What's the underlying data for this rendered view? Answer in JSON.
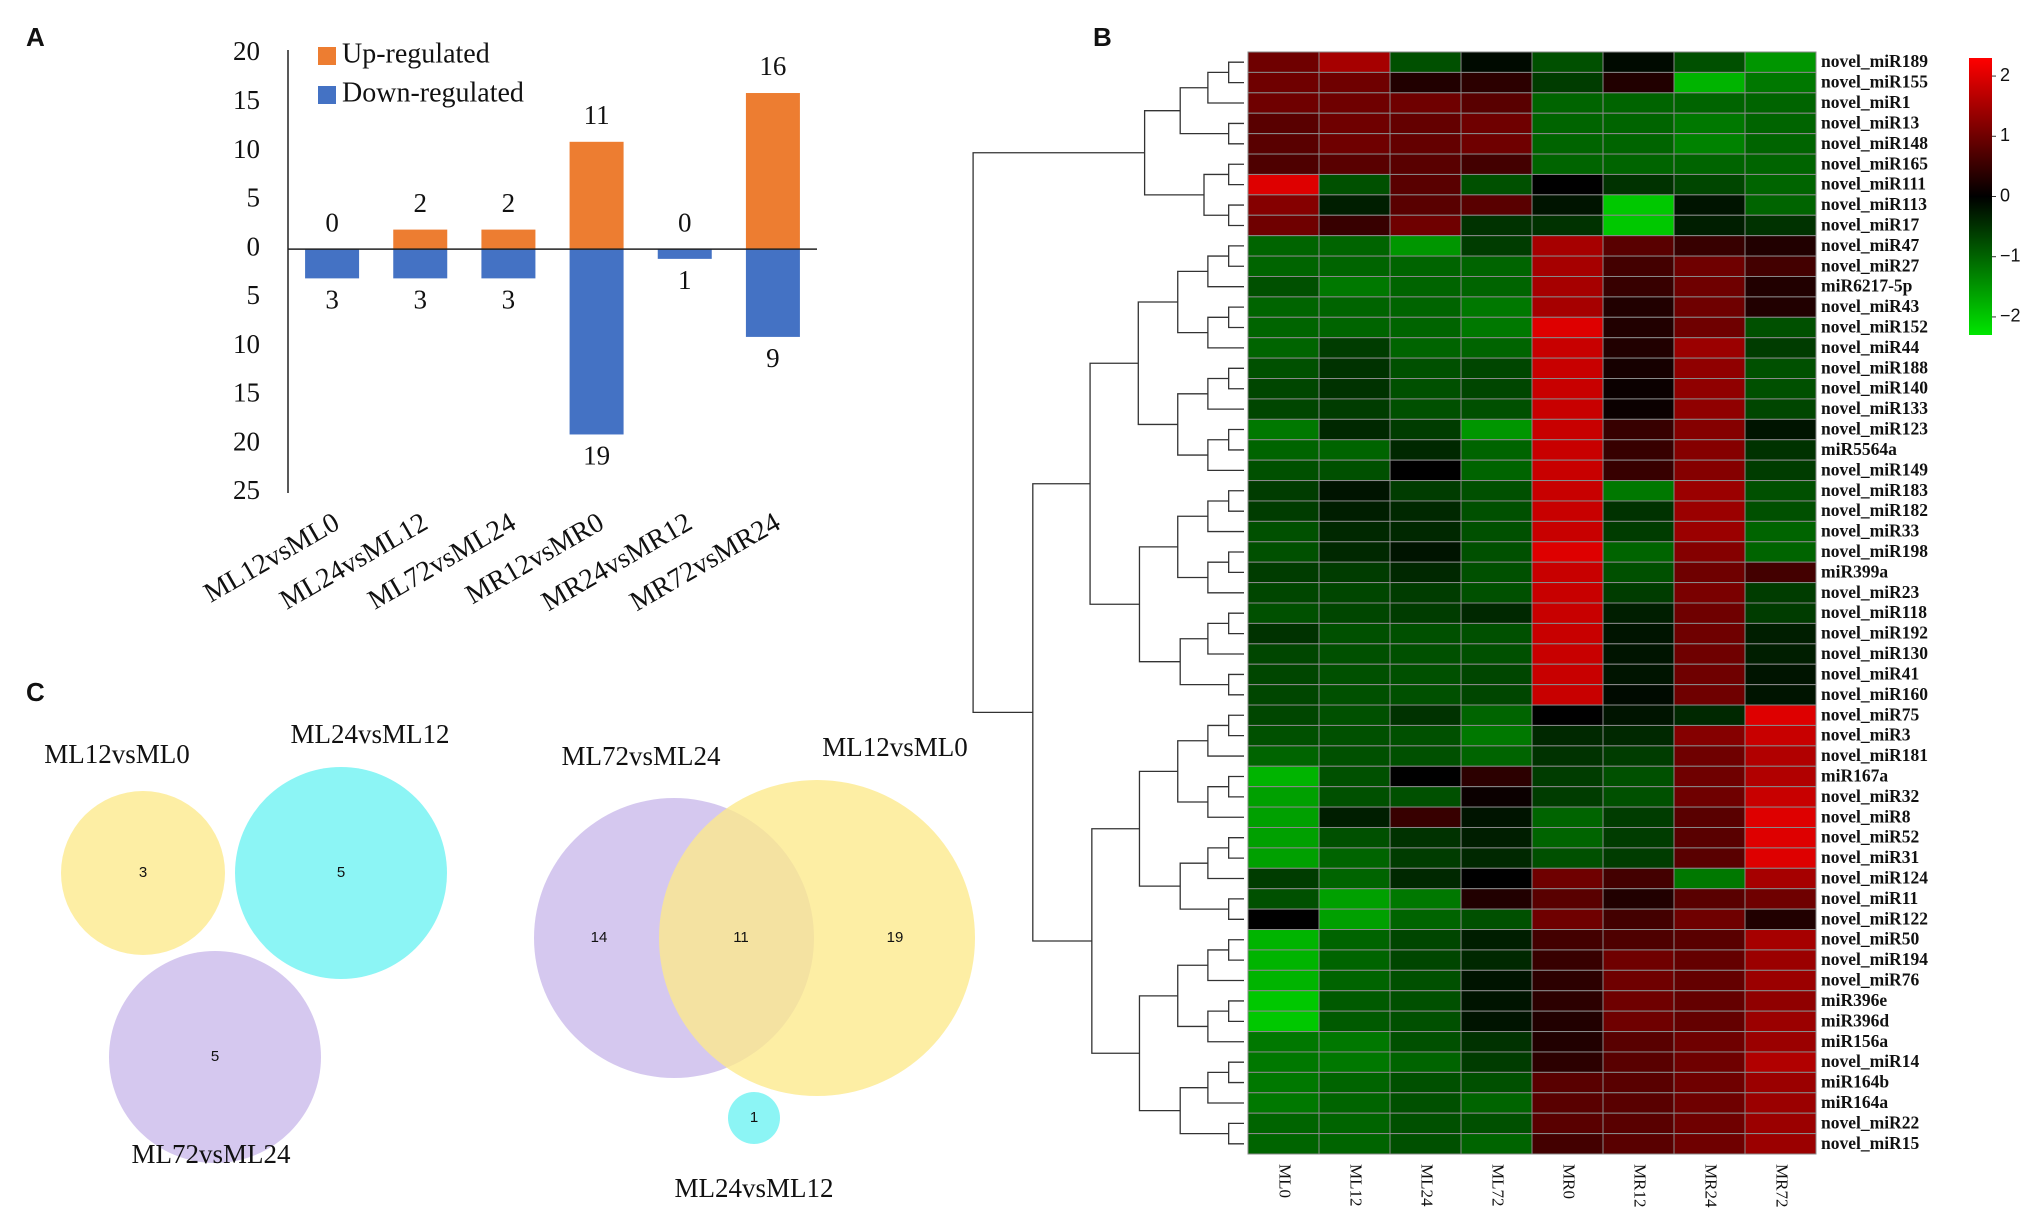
{
  "chart_data": [
    {
      "type": "bar",
      "panel_label": "A",
      "categories": [
        "ML12vsML0",
        "ML24vsML12",
        "ML72vsML24",
        "MR12vsMR0",
        "MR24vsMR12",
        "MR72vsMR24"
      ],
      "series": [
        {
          "name": "Up-regulated",
          "color": "#ed7d31",
          "values": [
            0,
            2,
            2,
            11,
            0,
            16
          ]
        },
        {
          "name": "Down-regulated",
          "color": "#4472c4",
          "values": [
            -3,
            -3,
            -3,
            -19,
            -1,
            -9
          ],
          "value_labels": [
            "3",
            "3",
            "3",
            "19",
            "1",
            "9"
          ]
        }
      ],
      "ylim": [
        -25,
        20
      ],
      "yticks": [
        20,
        15,
        10,
        5,
        0,
        {
          "value": -5,
          "label": "5"
        },
        {
          "value": -10,
          "label": "10"
        },
        {
          "value": -15,
          "label": "15"
        },
        {
          "value": -20,
          "label": "20"
        },
        {
          "value": -25,
          "label": "25"
        }
      ],
      "legend": "top-left"
    },
    {
      "type": "heatmap",
      "panel_label": "B",
      "columns": [
        "ML0",
        "ML12",
        "ML24",
        "ML72",
        "MR0",
        "MR12",
        "MR24",
        "MR72"
      ],
      "rows": [
        "novel_miR189",
        "novel_miR155",
        "novel_miR1",
        "novel_miR13",
        "novel_miR148",
        "novel_miR165",
        "novel_miR111",
        "novel_miR113",
        "novel_miR17",
        "novel_miR47",
        "novel_miR27",
        "miR6217-5p",
        "novel_miR43",
        "novel_miR152",
        "novel_miR44",
        "novel_miR188",
        "novel_miR140",
        "novel_miR133",
        "novel_miR123",
        "miR5564a",
        "novel_miR149",
        "novel_miR183",
        "novel_miR182",
        "novel_miR33",
        "novel_miR198",
        "miR399a",
        "novel_miR23",
        "novel_miR118",
        "novel_miR192",
        "novel_miR130",
        "novel_miR41",
        "novel_miR160",
        "novel_miR75",
        "novel_miR3",
        "novel_miR181",
        "miR167a",
        "novel_miR32",
        "novel_miR8",
        "novel_miR52",
        "novel_miR31",
        "novel_miR124",
        "novel_miR11",
        "novel_miR122",
        "novel_miR50",
        "novel_miR194",
        "novel_miR76",
        "miR396e",
        "miR396d",
        "miR156a",
        "novel_miR14",
        "miR164b",
        "miR164a",
        "novel_miR22",
        "novel_miR15"
      ],
      "values": [
        [
          1,
          1.5,
          -0.8,
          -0.1,
          -0.8,
          -0.1,
          -0.8,
          -1.5
        ],
        [
          1,
          1,
          0.3,
          0.4,
          -0.6,
          0.3,
          -1.8,
          -1.2
        ],
        [
          1,
          1,
          1,
          0.8,
          -1,
          -1,
          -1,
          -1
        ],
        [
          0.8,
          1,
          0.9,
          1,
          -1,
          -1,
          -1.2,
          -1
        ],
        [
          0.8,
          1,
          0.9,
          1,
          -1,
          -1,
          -1.3,
          -1
        ],
        [
          0.7,
          0.8,
          0.8,
          0.6,
          -1,
          -1,
          -1,
          -1
        ],
        [
          2,
          -0.8,
          0.8,
          -0.8,
          0,
          -0.5,
          -0.7,
          -1
        ],
        [
          1.2,
          -0.3,
          0.8,
          0.8,
          -0.2,
          -2,
          -0.2,
          -1
        ],
        [
          1,
          0.5,
          1,
          -0.5,
          -0.5,
          -2,
          -0.3,
          -0.5
        ],
        [
          -1,
          -1,
          -1.5,
          -0.6,
          1.5,
          0.8,
          0.5,
          0.3
        ],
        [
          -1,
          -1,
          -1,
          -1,
          1.5,
          0.6,
          1,
          0.6
        ],
        [
          -0.8,
          -1.2,
          -1,
          -1,
          1.5,
          0.5,
          1,
          0.3
        ],
        [
          -1,
          -1,
          -1,
          -1.2,
          1.5,
          0.3,
          1,
          0.3
        ],
        [
          -1,
          -1,
          -1,
          -1.2,
          2,
          0.3,
          1,
          -0.8
        ],
        [
          -1,
          -0.6,
          -1,
          -1,
          1.8,
          0.3,
          1.4,
          -0.6
        ],
        [
          -0.8,
          -0.5,
          -0.8,
          -0.7,
          1.8,
          0.2,
          1.3,
          -0.8
        ],
        [
          -0.7,
          -0.5,
          -0.8,
          -0.7,
          1.8,
          0.1,
          1.3,
          -0.8
        ],
        [
          -0.7,
          -0.6,
          -0.8,
          -0.8,
          1.8,
          0.1,
          1.3,
          -0.7
        ],
        [
          -1.2,
          -0.4,
          -0.6,
          -1.5,
          1.8,
          0.5,
          1.2,
          -0.2
        ],
        [
          -1,
          -1,
          -0.4,
          -1,
          1.8,
          0.5,
          1.2,
          -0.5
        ],
        [
          -0.8,
          -0.8,
          0,
          -1,
          1.8,
          0.5,
          1.2,
          -0.6
        ],
        [
          -0.6,
          -0.2,
          -0.6,
          -0.8,
          1.8,
          -1.2,
          1.4,
          -0.8
        ],
        [
          -0.6,
          -0.3,
          -0.4,
          -0.8,
          1.8,
          -0.5,
          1.4,
          -0.8
        ],
        [
          -0.8,
          -0.4,
          -0.4,
          -0.8,
          1.8,
          -0.6,
          1.4,
          -1
        ],
        [
          -0.8,
          -0.4,
          -0.2,
          -0.8,
          2,
          -1,
          1.2,
          -1
        ],
        [
          -0.6,
          -0.6,
          -0.4,
          -0.8,
          1.8,
          -0.8,
          1,
          0.6
        ],
        [
          -0.7,
          -0.7,
          -0.6,
          -0.8,
          1.8,
          -0.6,
          1.1,
          -0.6
        ],
        [
          -0.8,
          -0.7,
          -0.6,
          -0.4,
          1.8,
          -0.3,
          1,
          -0.6
        ],
        [
          -0.5,
          -0.8,
          -0.8,
          -0.8,
          1.8,
          -0.2,
          1,
          -0.3
        ],
        [
          -0.7,
          -0.8,
          -0.8,
          -0.8,
          1.8,
          -0.2,
          1,
          -0.3
        ],
        [
          -0.7,
          -0.8,
          -0.8,
          -0.7,
          1.8,
          -0.2,
          1,
          -0.2
        ],
        [
          -0.7,
          -0.8,
          -0.8,
          -0.7,
          1.8,
          -0.1,
          1,
          -0.2
        ],
        [
          -0.7,
          -0.8,
          -0.5,
          -1,
          0,
          -0.2,
          -0.4,
          2
        ],
        [
          -0.8,
          -0.8,
          -0.8,
          -1.2,
          -0.4,
          -0.4,
          1.2,
          1.8
        ],
        [
          -1,
          -0.8,
          -0.8,
          -1,
          -0.5,
          -0.6,
          1,
          1.6
        ],
        [
          -1.8,
          -0.8,
          0,
          0.4,
          -0.6,
          -0.8,
          1,
          1.6
        ],
        [
          -1.6,
          -0.8,
          -0.8,
          0.1,
          -0.6,
          -0.8,
          1,
          1.8
        ],
        [
          -1.6,
          -0.3,
          0.5,
          -0.2,
          -1,
          -0.6,
          0.8,
          2
        ],
        [
          -1.6,
          -0.8,
          -0.5,
          -0.3,
          -1,
          -0.6,
          0.8,
          2
        ],
        [
          -1.6,
          -1,
          -0.6,
          -0.4,
          -0.8,
          -0.6,
          0.8,
          2
        ],
        [
          -0.6,
          -1,
          -0.4,
          0,
          1,
          0.6,
          -1.2,
          1.5
        ],
        [
          -0.8,
          -1.6,
          -1.2,
          0.3,
          0.8,
          0.3,
          0.8,
          1
        ],
        [
          0,
          -1.6,
          -1,
          -0.8,
          1,
          0.6,
          1,
          0.3
        ],
        [
          -1.8,
          -1,
          -0.7,
          -0.3,
          0.6,
          0.7,
          0.8,
          1.5
        ],
        [
          -1.8,
          -1,
          -0.7,
          -0.4,
          0.5,
          1,
          0.9,
          1.4
        ],
        [
          -1.8,
          -1,
          -0.8,
          -0.2,
          0.4,
          1,
          0.9,
          1.4
        ],
        [
          -2,
          -0.9,
          -0.8,
          -0.2,
          0.4,
          1,
          0.9,
          1.3
        ],
        [
          -2,
          -0.9,
          -0.8,
          -0.2,
          0.3,
          1,
          0.9,
          1.4
        ],
        [
          -1.2,
          -1.2,
          -0.8,
          -0.5,
          0.3,
          0.8,
          1,
          1.4
        ],
        [
          -1.2,
          -1.2,
          -1,
          -0.6,
          0.4,
          0.8,
          1,
          1.6
        ],
        [
          -1.2,
          -1,
          -0.8,
          -0.8,
          0.8,
          0.8,
          1,
          1.4
        ],
        [
          -1.2,
          -1,
          -0.8,
          -1,
          0.8,
          0.8,
          1,
          1.4
        ],
        [
          -1,
          -1,
          -0.8,
          -0.8,
          0.8,
          0.8,
          1,
          1.4
        ],
        [
          -1,
          -1,
          -0.8,
          -1,
          0.6,
          0.8,
          1,
          1.4
        ]
      ],
      "zlim": [
        -2.3,
        2.3
      ],
      "colorbar_ticks": [
        2,
        1,
        0,
        {
          "value": -1,
          "label": "−1"
        },
        {
          "value": -2,
          "label": "−2"
        }
      ],
      "colors": [
        "#00e600",
        "#000000",
        "#ff0000"
      ]
    },
    {
      "type": "venn",
      "panel_label": "C",
      "diagrams": [
        {
          "sets": [
            {
              "name": "ML12vsML0",
              "color": "#fde98a",
              "count": 3
            },
            {
              "name": "ML24vsML12",
              "color": "#6cf2f2",
              "count": 5
            },
            {
              "name": "ML72vsML24",
              "color": "#c9b8ea",
              "count": 5
            }
          ]
        },
        {
          "sets": [
            {
              "name": "ML72vsML24",
              "color": "#c9b8ea",
              "count": 14
            },
            {
              "name": "ML12vsML0",
              "color": "#fde98a",
              "count": 19
            },
            {
              "name": "ML24vsML12",
              "color": "#6cf2f2",
              "count": 1
            }
          ],
          "overlaps": [
            {
              "sets": [
                0,
                1
              ],
              "count": 11
            }
          ]
        }
      ]
    }
  ]
}
